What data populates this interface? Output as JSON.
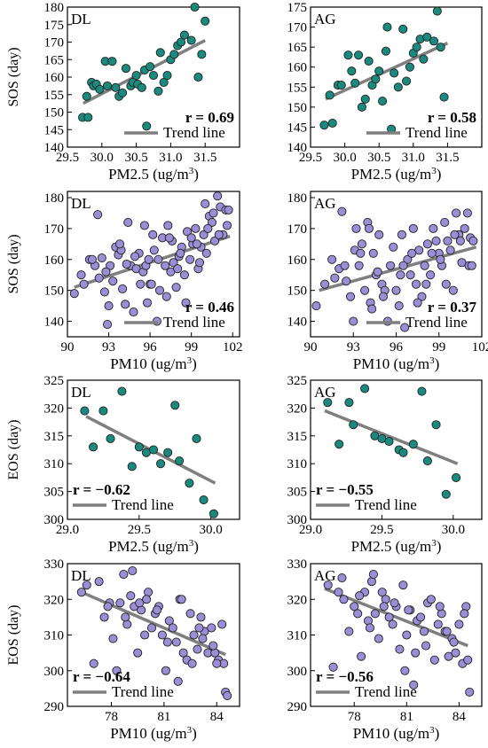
{
  "colors": {
    "teal": "#1a8a7e",
    "purple": "#9b8ed6",
    "trend": "#7f7f7f",
    "marker_edge": "#222222"
  },
  "chart_data": [
    {
      "id": "p1",
      "type": "scatter",
      "panel_label": "DL",
      "xlabel": "PM2.5 (ug/m³)",
      "ylabel": "SOS (day)",
      "xlim": [
        29.5,
        32.0
      ],
      "ylim": [
        140,
        180
      ],
      "xticks": [
        29.5,
        30.0,
        30.5,
        31.0,
        31.5
      ],
      "xtick_labels": [
        "29.5",
        "30.0",
        "30.5",
        "31.0",
        "31.5"
      ],
      "yticks": [
        140,
        145,
        150,
        155,
        160,
        165,
        170,
        175,
        180
      ],
      "ytick_labels": [
        "140",
        "145",
        "150",
        "155",
        "160",
        "165",
        "170",
        "175",
        "180"
      ],
      "marker_color": "teal",
      "trend": [
        [
          29.73,
          152.5
        ],
        [
          31.5,
          170.5
        ]
      ],
      "r_text": "r = 0.69",
      "r_pos": "bottom-right",
      "legend_label": "Trend line",
      "legend_pos": "bottom-right",
      "x": [
        29.72,
        29.78,
        29.8,
        29.85,
        29.88,
        29.92,
        29.97,
        30.05,
        30.08,
        30.15,
        30.2,
        30.25,
        30.3,
        30.35,
        30.42,
        30.45,
        30.5,
        30.52,
        30.58,
        30.62,
        30.65,
        30.7,
        30.75,
        30.82,
        30.85,
        30.9,
        30.95,
        31.0,
        31.05,
        31.1,
        31.15,
        31.2,
        31.3,
        31.35,
        31.4,
        31.45,
        31.5
      ],
      "y": [
        148.5,
        154.5,
        148.5,
        158.5,
        157.5,
        158.0,
        156.5,
        164.5,
        157.5,
        164.5,
        157.0,
        154.5,
        155.5,
        162.5,
        157.5,
        158.5,
        160.5,
        158.0,
        157.0,
        162.0,
        146.0,
        163.0,
        160.5,
        156.0,
        167.0,
        158.5,
        160.5,
        165.0,
        166.5,
        169.0,
        170.0,
        172.0,
        170.5,
        180.0,
        160.0,
        166.5,
        176.0
      ]
    },
    {
      "id": "p2",
      "type": "scatter",
      "panel_label": "AG",
      "xlabel": "PM2.5 (ug/m³)",
      "ylabel": "",
      "xlim": [
        29.5,
        32.0
      ],
      "ylim": [
        140,
        175
      ],
      "xticks": [
        29.5,
        30.0,
        30.5,
        31.0,
        31.5
      ],
      "xtick_labels": [
        "29.5",
        "30.0",
        "30.5",
        "31.0",
        "31.5"
      ],
      "yticks": [
        140,
        145,
        150,
        155,
        160,
        165,
        170,
        175
      ],
      "ytick_labels": [
        "140",
        "145",
        "150",
        "155",
        "160",
        "165",
        "170",
        "175"
      ],
      "marker_color": "teal",
      "trend": [
        [
          29.72,
          152.0
        ],
        [
          31.5,
          166.0
        ]
      ],
      "r_text": "r = 0.58",
      "r_pos": "bottom-right",
      "legend_label": "Trend line",
      "legend_pos": "bottom-right",
      "x": [
        29.7,
        29.78,
        29.82,
        29.9,
        29.95,
        30.05,
        30.1,
        30.15,
        30.2,
        30.25,
        30.3,
        30.35,
        30.4,
        30.45,
        30.5,
        30.55,
        30.6,
        30.62,
        30.68,
        30.72,
        30.78,
        30.85,
        30.9,
        30.95,
        31.0,
        31.05,
        31.1,
        31.15,
        31.2,
        31.3,
        31.35,
        31.4,
        31.45
      ],
      "y": [
        145.5,
        153.0,
        146.0,
        155.5,
        155.5,
        163.0,
        159.0,
        156.0,
        163.0,
        150.0,
        152.0,
        161.5,
        155.5,
        157.0,
        159.0,
        151.5,
        164.0,
        170.0,
        144.5,
        158.5,
        155.0,
        169.5,
        156.5,
        160.0,
        163.5,
        165.0,
        167.0,
        162.0,
        167.5,
        166.5,
        174.0,
        165.0,
        152.5
      ]
    },
    {
      "id": "p3",
      "type": "scatter",
      "panel_label": "DL",
      "xlabel": "PM10 (ug/m³)",
      "ylabel": "SOS (day)",
      "xlim": [
        90,
        102.5
      ],
      "ylim": [
        135,
        182
      ],
      "xticks": [
        90,
        93,
        96,
        99,
        102
      ],
      "xtick_labels": [
        "90",
        "93",
        "96",
        "99",
        "102"
      ],
      "yticks": [
        140,
        150,
        160,
        170,
        180
      ],
      "ytick_labels": [
        "140",
        "150",
        "160",
        "170",
        "180"
      ],
      "marker_color": "purple",
      "trend": [
        [
          90.5,
          151.0
        ],
        [
          101.8,
          167.5
        ]
      ],
      "r_text": "r = 0.46",
      "r_pos": "bottom-right",
      "legend_label": "Trend line",
      "legend_pos": "bottom-right",
      "x": [
        90.5,
        91.0,
        91.2,
        91.6,
        92.0,
        92.2,
        92.5,
        92.7,
        92.9,
        93.1,
        93.3,
        93.5,
        93.7,
        93.9,
        94.0,
        94.2,
        94.4,
        94.6,
        94.8,
        95.0,
        95.2,
        95.3,
        95.5,
        95.7,
        95.8,
        96.0,
        96.2,
        96.3,
        96.5,
        96.7,
        96.9,
        97.1,
        97.3,
        97.5,
        97.7,
        97.9,
        98.1,
        98.3,
        98.5,
        98.7,
        98.9,
        99.1,
        99.3,
        99.5,
        99.7,
        99.9,
        100.1,
        100.3,
        100.5,
        100.7,
        100.9,
        101.1,
        101.3,
        101.5,
        101.7,
        91.8,
        92.3,
        93.8,
        94.3,
        95.6,
        96.6,
        97.2,
        97.6,
        98.0,
        98.6,
        99.6,
        100.0,
        100.6,
        101.0,
        101.6,
        92.8,
        94.9,
        96.1,
        98.2,
        99.0,
        100.2,
        93.0,
        95.9,
        97.4,
        99.4
      ],
      "y": [
        149.0,
        155.0,
        152.0,
        160.0,
        158.0,
        174.5,
        160.5,
        149.5,
        139.0,
        158.0,
        153.0,
        164.0,
        161.5,
        163.0,
        150.5,
        145.5,
        172.0,
        158.0,
        143.0,
        157.0,
        162.0,
        152.0,
        156.0,
        158.0,
        146.0,
        152.0,
        168.0,
        163.0,
        140.0,
        150.0,
        167.0,
        158.0,
        171.0,
        156.0,
        159.0,
        151.0,
        161.0,
        164.0,
        155.0,
        169.0,
        160.0,
        165.0,
        170.0,
        157.0,
        164.0,
        168.0,
        162.0,
        174.0,
        172.0,
        166.0,
        180.5,
        177.0,
        168.0,
        176.0,
        176.0,
        160.0,
        154.0,
        165.0,
        158.5,
        171.0,
        160.0,
        148.0,
        166.0,
        157.0,
        146.0,
        159.0,
        178.0,
        175.0,
        168.0,
        171.0,
        156.0,
        161.0,
        152.0,
        162.0,
        167.0,
        170.0,
        145.0,
        160.0,
        167.0,
        165.0
      ]
    },
    {
      "id": "p4",
      "type": "scatter",
      "panel_label": "AG",
      "xlabel": "PM10 (ug/m³)",
      "ylabel": "",
      "xlim": [
        90,
        102
      ],
      "ylim": [
        135,
        182
      ],
      "xticks": [
        90,
        93,
        96,
        99,
        102
      ],
      "xtick_labels": [
        "90",
        "93",
        "96",
        "99",
        "102"
      ],
      "yticks": [
        140,
        150,
        160,
        170,
        180
      ],
      "ytick_labels": [
        "140",
        "150",
        "160",
        "170",
        "180"
      ],
      "marker_color": "purple",
      "trend": [
        [
          90.6,
          150.0
        ],
        [
          101.6,
          164.0
        ]
      ],
      "r_text": "r = 0.37",
      "r_pos": "bottom-right",
      "legend_label": "Trend line",
      "legend_pos": "bottom-right",
      "x": [
        90.4,
        91.0,
        91.5,
        92.0,
        92.2,
        92.5,
        92.8,
        93.0,
        93.2,
        93.4,
        93.6,
        93.8,
        94.0,
        94.2,
        94.4,
        94.6,
        94.8,
        95.0,
        95.2,
        95.4,
        95.6,
        95.8,
        96.0,
        96.2,
        96.4,
        96.6,
        96.8,
        97.0,
        97.2,
        97.4,
        97.6,
        97.8,
        98.0,
        98.2,
        98.4,
        98.6,
        98.8,
        99.0,
        99.2,
        99.4,
        99.6,
        99.8,
        100.0,
        100.2,
        100.4,
        100.6,
        100.8,
        101.0,
        101.2,
        101.4,
        92.4,
        93.1,
        94.1,
        95.1,
        96.3,
        97.1,
        98.1,
        99.1,
        100.1,
        101.1,
        91.7,
        93.5,
        94.7,
        96.5,
        97.5,
        98.5,
        99.5,
        100.5,
        101.3,
        94.3
      ],
      "y": [
        145.0,
        152.0,
        160.0,
        157.0,
        175.5,
        153.0,
        148.0,
        140.0,
        170.0,
        158.0,
        165.0,
        150.0,
        172.0,
        146.0,
        162.0,
        155.0,
        168.0,
        152.0,
        150.0,
        140.0,
        158.0,
        164.0,
        150.0,
        145.0,
        168.0,
        138.0,
        160.0,
        155.0,
        170.0,
        152.0,
        163.0,
        148.0,
        158.0,
        165.0,
        155.0,
        170.0,
        166.0,
        162.0,
        158.0,
        172.0,
        166.0,
        163.0,
        150.0,
        175.0,
        168.0,
        159.0,
        170.0,
        175.0,
        167.0,
        166.0,
        158.0,
        163.0,
        170.0,
        148.0,
        155.0,
        162.0,
        152.0,
        160.0,
        168.0,
        158.0,
        154.0,
        162.0,
        156.0,
        158.0,
        146.0,
        162.0,
        152.0,
        166.0,
        158.0,
        144.0
      ]
    },
    {
      "id": "p5",
      "type": "scatter",
      "panel_label": "DL",
      "xlabel": "PM2.5 (ug/m³)",
      "ylabel": "EOS (day)",
      "xlim": [
        29.0,
        30.2
      ],
      "ylim": [
        300,
        325
      ],
      "xticks": [
        29.0,
        29.5,
        30.0
      ],
      "xtick_labels": [
        "29.0",
        "29.5",
        "30.0"
      ],
      "yticks": [
        300,
        305,
        310,
        315,
        320,
        325
      ],
      "ytick_labels": [
        "300",
        "305",
        "310",
        "315",
        "320",
        "325"
      ],
      "marker_color": "teal",
      "trend": [
        [
          29.13,
          318.5
        ],
        [
          30.03,
          306.5
        ]
      ],
      "r_text": "r = −0.62",
      "r_pos": "bottom-left",
      "legend_label": "Trend line",
      "legend_pos": "bottom-left",
      "x": [
        29.12,
        29.18,
        29.25,
        29.3,
        29.38,
        29.45,
        29.5,
        29.55,
        29.6,
        29.65,
        29.7,
        29.75,
        29.78,
        29.85,
        29.9,
        29.95,
        30.02
      ],
      "y": [
        319.5,
        313.0,
        319.5,
        314.5,
        323.0,
        309.5,
        313.0,
        312.0,
        312.5,
        310.0,
        312.0,
        320.5,
        310.5,
        306.5,
        314.5,
        303.5,
        301.0
      ]
    },
    {
      "id": "p6",
      "type": "scatter",
      "panel_label": "AG",
      "xlabel": "PM2.5 (ug/m³)",
      "ylabel": "",
      "xlim": [
        29.0,
        30.2
      ],
      "ylim": [
        300,
        325
      ],
      "xticks": [
        29.0,
        29.5,
        30.0
      ],
      "xtick_labels": [
        "29.0",
        "29.5",
        "30.0"
      ],
      "yticks": [
        300,
        305,
        310,
        315,
        320,
        325
      ],
      "ytick_labels": [
        "300",
        "305",
        "310",
        "315",
        "320",
        "325"
      ],
      "marker_color": "teal",
      "trend": [
        [
          29.1,
          319.5
        ],
        [
          30.03,
          310.0
        ]
      ],
      "r_text": "r = −0.55",
      "r_pos": "bottom-left",
      "legend_label": "Trend line",
      "legend_pos": "bottom-left",
      "x": [
        29.12,
        29.2,
        29.27,
        29.3,
        29.38,
        29.45,
        29.5,
        29.55,
        29.62,
        29.65,
        29.72,
        29.78,
        29.82,
        29.88,
        29.95,
        30.02
      ],
      "y": [
        321.0,
        313.5,
        321.0,
        317.0,
        323.5,
        315.0,
        314.5,
        314.0,
        312.5,
        312.0,
        313.5,
        323.0,
        310.5,
        317.0,
        304.5,
        307.5
      ]
    },
    {
      "id": "p7",
      "type": "scatter",
      "panel_label": "DL",
      "xlabel": "PM10 (ug/m³)",
      "ylabel": "EOS (day)",
      "xlim": [
        75.5,
        85.3
      ],
      "ylim": [
        290,
        330
      ],
      "xticks": [
        78,
        81,
        84
      ],
      "xtick_labels": [
        "78",
        "81",
        "84"
      ],
      "yticks": [
        290,
        300,
        310,
        320,
        330
      ],
      "ytick_labels": [
        "290",
        "300",
        "310",
        "320",
        "330"
      ],
      "marker_color": "purple",
      "trend": [
        [
          76.3,
          322.0
        ],
        [
          84.5,
          304.5
        ]
      ],
      "r_text": "r = −0.64",
      "r_pos": "bottom-left",
      "legend_label": "Trend line",
      "legend_pos": "bottom-left",
      "x": [
        76.3,
        76.6,
        77.0,
        77.3,
        77.6,
        77.9,
        78.1,
        78.3,
        78.5,
        78.7,
        78.9,
        79.1,
        79.3,
        79.5,
        79.7,
        79.9,
        80.1,
        80.3,
        80.5,
        80.7,
        80.9,
        81.1,
        81.3,
        81.5,
        81.7,
        81.9,
        82.1,
        82.3,
        82.5,
        82.7,
        82.9,
        83.1,
        83.3,
        83.5,
        83.7,
        83.9,
        84.1,
        84.3,
        84.5,
        78.8,
        79.2,
        80.0,
        80.6,
        81.2,
        82.0,
        82.6,
        83.2,
        83.8,
        84.4,
        77.8,
        79.6,
        81.8,
        83.0,
        84.0,
        84.6
      ],
      "y": [
        322.0,
        324.0,
        302.0,
        325.0,
        315.0,
        319.0,
        309.0,
        300.0,
        319.0,
        327.0,
        313.0,
        321.0,
        318.0,
        305.0,
        317.0,
        310.0,
        322.0,
        312.0,
        316.0,
        318.0,
        310.0,
        300.0,
        314.0,
        312.0,
        308.0,
        320.0,
        305.0,
        303.0,
        316.0,
        310.0,
        306.0,
        315.0,
        311.0,
        305.0,
        312.0,
        305.0,
        303.0,
        313.0,
        294.0,
        315.0,
        328.0,
        320.0,
        317.0,
        308.0,
        320.0,
        302.0,
        309.0,
        307.0,
        302.0,
        318.0,
        319.0,
        297.0,
        312.0,
        302.0,
        293.0
      ]
    },
    {
      "id": "p8",
      "type": "scatter",
      "panel_label": "AG",
      "xlabel": "PM10 (ug/m³)",
      "ylabel": "",
      "xlim": [
        75.5,
        85.3
      ],
      "ylim": [
        290,
        330
      ],
      "xticks": [
        78,
        81,
        84
      ],
      "xtick_labels": [
        "78",
        "81",
        "84"
      ],
      "yticks": [
        290,
        300,
        310,
        320,
        330
      ],
      "ytick_labels": [
        "290",
        "300",
        "310",
        "320",
        "330"
      ],
      "marker_color": "purple",
      "trend": [
        [
          76.3,
          323.0
        ],
        [
          84.5,
          307.0
        ]
      ],
      "r_text": "r = −0.56",
      "r_pos": "bottom-left",
      "legend_label": "Trend line",
      "legend_pos": "bottom-left",
      "x": [
        76.5,
        76.8,
        77.1,
        77.4,
        77.7,
        78.0,
        78.2,
        78.4,
        78.6,
        78.8,
        79.0,
        79.2,
        79.4,
        79.6,
        79.8,
        80.0,
        80.2,
        80.4,
        80.6,
        80.8,
        81.0,
        81.2,
        81.4,
        81.6,
        81.8,
        82.0,
        82.2,
        82.4,
        82.6,
        82.8,
        83.0,
        83.2,
        83.4,
        83.6,
        83.8,
        84.0,
        84.2,
        84.4,
        84.6,
        78.3,
        79.1,
        80.3,
        81.1,
        82.1,
        82.9,
        83.7,
        84.5,
        77.3,
        79.7,
        81.5,
        83.3,
        84.3,
        80.9,
        78.9
      ],
      "y": [
        324.0,
        301.0,
        322.0,
        320.0,
        311.0,
        318.0,
        316.0,
        304.0,
        322.0,
        314.0,
        325.0,
        316.0,
        309.0,
        322.0,
        320.0,
        315.0,
        313.0,
        318.0,
        306.0,
        324.0,
        310.0,
        317.0,
        296.0,
        314.0,
        315.0,
        311.0,
        319.0,
        320.0,
        303.0,
        313.0,
        316.0,
        311.0,
        304.0,
        309.0,
        305.0,
        313.0,
        302.0,
        318.0,
        294.0,
        321.0,
        327.0,
        319.0,
        317.0,
        307.0,
        318.0,
        308.0,
        303.0,
        326.0,
        318.0,
        305.0,
        311.0,
        316.0,
        300.0,
        312.0
      ]
    }
  ]
}
